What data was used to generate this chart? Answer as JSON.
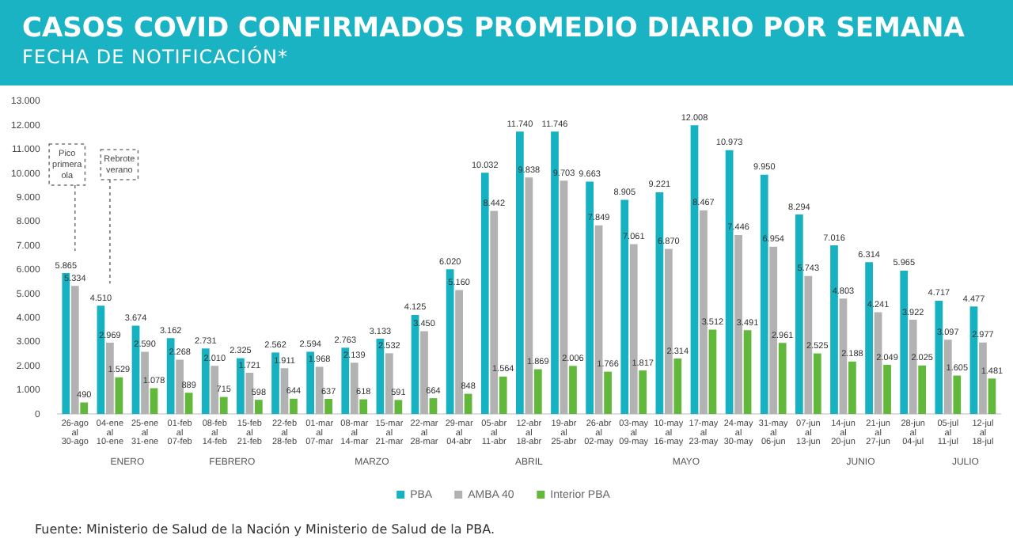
{
  "chart_data": {
    "type": "bar",
    "title": "CASOS COVID CONFIRMADOS PROMEDIO DIARIO POR SEMANA",
    "subtitle": "FECHA DE NOTIFICACIÓN*",
    "categories": [
      "26-ago al 30-ago",
      "04-ene al 10-ene",
      "25-ene al 31-ene",
      "01-feb al 07-feb",
      "08-feb al 14-feb",
      "15-feb al 21-feb",
      "22-feb al 28-feb",
      "01-mar al 07-mar",
      "08-mar al 14-mar",
      "15-mar al 21-mar",
      "22-mar al 28-mar",
      "29-mar al 04-abr",
      "05-abr al 11-abr",
      "12-abr al 18-abr",
      "19-abr al 25-abr",
      "26-abr al 02-may",
      "03-may al 09-may",
      "10-may al 16-may",
      "17-may al 23-may",
      "24-may al 30-may",
      "31-may al 06-jun",
      "07-jun al 13-jun",
      "14-jun al 20-jun",
      "21-jun al 27-jun",
      "28-jun al 04-jul",
      "05-jul al 11-jul",
      "12-jul al 18-jul"
    ],
    "series": [
      {
        "name": "PBA",
        "color": "#17b2c2",
        "values": [
          5865,
          4510,
          3674,
          3162,
          2731,
          2325,
          2562,
          2594,
          2763,
          3133,
          4125,
          6020,
          10032,
          11740,
          11746,
          9663,
          8905,
          9221,
          12008,
          10973,
          9950,
          8294,
          7016,
          6314,
          5965,
          4717,
          4477
        ],
        "value_labels": [
          "5.865",
          "4.510",
          "3.674",
          "3.162",
          "2.731",
          "2.325",
          "2.562",
          "2.594",
          "2.763",
          "3.133",
          "4.125",
          "6.020",
          "10.032",
          "11.740",
          "11.746",
          "9.663",
          "8.905",
          "9.221",
          "12.008",
          "10.973",
          "9.950",
          "8.294",
          "7.016",
          "6.314",
          "5.965",
          "4.717",
          "4.477"
        ]
      },
      {
        "name": "AMBA 40",
        "color": "#b2b2b2",
        "values": [
          5334,
          2969,
          2590,
          2268,
          2010,
          1721,
          1911,
          1968,
          2139,
          2532,
          3450,
          5160,
          8442,
          9838,
          9703,
          7849,
          7061,
          6870,
          8467,
          7446,
          6954,
          5743,
          4803,
          4241,
          3922,
          3097,
          2977
        ],
        "value_labels": [
          "5.334",
          "2.969",
          "2.590",
          "2.268",
          "2.010",
          "1.721",
          "1.911",
          "1.968",
          "2.139",
          "2.532",
          "3.450",
          "5.160",
          "8.442",
          "9.838",
          "9.703",
          "7.849",
          "7.061",
          "6.870",
          "8.467",
          "7.446",
          "6.954",
          "5.743",
          "4.803",
          "4.241",
          "3.922",
          "3.097",
          "2.977"
        ]
      },
      {
        "name": "Interior PBA",
        "color": "#62b83a",
        "values": [
          490,
          1529,
          1078,
          889,
          715,
          598,
          644,
          637,
          618,
          591,
          664,
          848,
          1564,
          1869,
          2006,
          1766,
          1817,
          2314,
          3512,
          3491,
          2961,
          2525,
          2188,
          2049,
          2025,
          1605,
          1481
        ],
        "value_labels": [
          "490",
          "1.529",
          "1.078",
          "889",
          "715",
          "598",
          "644",
          "637",
          "618",
          "591",
          "664",
          "848",
          "1.564",
          "1.869",
          "2.006",
          "1.766",
          "1.817",
          "2.314",
          "3.512",
          "3.491",
          "2.961",
          "2.525",
          "2.188",
          "2.049",
          "2.025",
          "1.605",
          "1.481"
        ]
      }
    ],
    "ylim": [
      0,
      13000
    ],
    "yticks": [
      {
        "value": 0,
        "label": "0"
      },
      {
        "value": 1000,
        "label": "1.000"
      },
      {
        "value": 2000,
        "label": "2.000"
      },
      {
        "value": 3000,
        "label": "3.000"
      },
      {
        "value": 4000,
        "label": "4.000"
      },
      {
        "value": 5000,
        "label": "5.000"
      },
      {
        "value": 6000,
        "label": "6.000"
      },
      {
        "value": 7000,
        "label": "7.000"
      },
      {
        "value": 8000,
        "label": "8.000"
      },
      {
        "value": 9000,
        "label": "9.000"
      },
      {
        "value": 10000,
        "label": "10.000"
      },
      {
        "value": 11000,
        "label": "11.000"
      },
      {
        "value": 12000,
        "label": "12.000"
      },
      {
        "value": 13000,
        "label": "13.000"
      }
    ],
    "grid": false,
    "legend": "bottom",
    "annotations": [
      "Pico primera ola",
      "Rebrote verano",
      "ENERO",
      "FEBRERO",
      "MARZO",
      "ABRIL",
      "MAYO",
      "JUNIO",
      "JULIO",
      "Fuente: Ministerio de Salud de la Nación y Ministerio de Salud de la PBA."
    ]
  }
}
